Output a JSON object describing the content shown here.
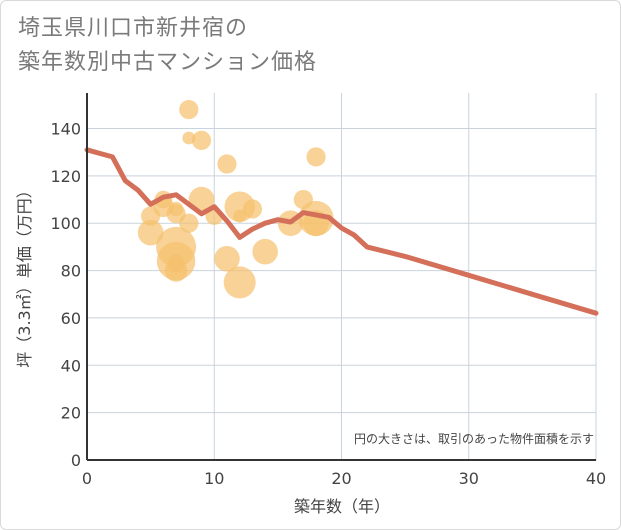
{
  "title_line1": "埼玉県川口市新井宿の",
  "title_line2": "築年数別中古マンション価格",
  "chart_data": {
    "type": "scatter",
    "xlabel": "築年数（年）",
    "ylabel": "坪（3.3㎡）単価（万円）",
    "xlim": [
      0,
      40
    ],
    "ylim": [
      0,
      155
    ],
    "x_ticks": [
      0,
      10,
      20,
      30,
      40
    ],
    "y_ticks": [
      0,
      20,
      40,
      60,
      80,
      100,
      120,
      140
    ],
    "grid": true,
    "note": "円の大きさは、取引のあった物件面積を示す",
    "colors": {
      "bubble": "#f5c06d",
      "line": "#d4705a",
      "grid": "#c9d3dd",
      "axis": "#333333"
    },
    "bubbles": [
      {
        "x": 5,
        "y": 96,
        "size": 0.55
      },
      {
        "x": 5,
        "y": 103,
        "size": 0.35
      },
      {
        "x": 6,
        "y": 107,
        "size": 0.4
      },
      {
        "x": 6,
        "y": 110,
        "size": 0.3
      },
      {
        "x": 7,
        "y": 106,
        "size": 0.2
      },
      {
        "x": 7,
        "y": 104,
        "size": 0.35
      },
      {
        "x": 7,
        "y": 90,
        "size": 1.0
      },
      {
        "x": 7,
        "y": 84,
        "size": 0.95
      },
      {
        "x": 7,
        "y": 80,
        "size": 0.45
      },
      {
        "x": 7,
        "y": 83,
        "size": 0.3
      },
      {
        "x": 8,
        "y": 148,
        "size": 0.35
      },
      {
        "x": 8,
        "y": 136,
        "size": 0.15
      },
      {
        "x": 8,
        "y": 100,
        "size": 0.35
      },
      {
        "x": 9,
        "y": 135,
        "size": 0.35
      },
      {
        "x": 9,
        "y": 110,
        "size": 0.55
      },
      {
        "x": 10,
        "y": 103,
        "size": 0.3
      },
      {
        "x": 11,
        "y": 125,
        "size": 0.35
      },
      {
        "x": 11,
        "y": 85,
        "size": 0.55
      },
      {
        "x": 12,
        "y": 107,
        "size": 0.7
      },
      {
        "x": 12,
        "y": 103,
        "size": 0.15
      },
      {
        "x": 12,
        "y": 75,
        "size": 0.75
      },
      {
        "x": 13,
        "y": 106,
        "size": 0.35
      },
      {
        "x": 14,
        "y": 88,
        "size": 0.55
      },
      {
        "x": 16,
        "y": 100,
        "size": 0.55
      },
      {
        "x": 17,
        "y": 110,
        "size": 0.35
      },
      {
        "x": 18,
        "y": 128,
        "size": 0.35
      },
      {
        "x": 18,
        "y": 102,
        "size": 0.85
      },
      {
        "x": 18,
        "y": 100,
        "size": 0.55
      }
    ],
    "trend_line": {
      "x": [
        0,
        1,
        2,
        3,
        4,
        5,
        6,
        7,
        8,
        9,
        10,
        11,
        12,
        13,
        14,
        15,
        16,
        17,
        18,
        19,
        20,
        21,
        22,
        25,
        30,
        35,
        40
      ],
      "y": [
        131,
        129.5,
        128,
        118,
        114,
        108,
        111,
        112,
        108,
        104,
        107,
        101,
        94,
        97.5,
        100,
        101.5,
        100.5,
        104.5,
        103.5,
        102.5,
        98,
        95,
        90,
        86,
        78,
        70,
        62
      ]
    }
  }
}
